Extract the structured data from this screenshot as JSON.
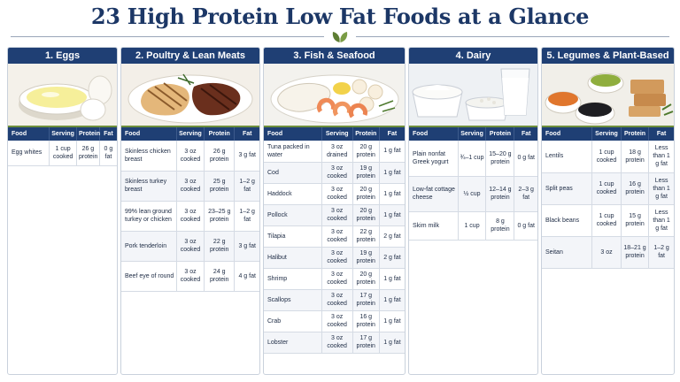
{
  "page_title": "23 High Protein Low Fat Foods at a Glance",
  "table_headers": {
    "food": "Food",
    "serving": "Serving",
    "protein": "Protein",
    "fat": "Fat"
  },
  "panels": [
    {
      "title": "1. Eggs",
      "image": "egg-whites-bowl",
      "rows": [
        {
          "food": "Egg whites",
          "serving": "1 cup cooked",
          "protein": "26 g protein",
          "fat": "0 g fat"
        }
      ]
    },
    {
      "title": "2. Poultry & Lean Meats",
      "image": "grilled-chicken-and-beef",
      "rows": [
        {
          "food": "Skinless chicken breast",
          "serving": "3 oz cooked",
          "protein": "26 g protein",
          "fat": "3 g fat"
        },
        {
          "food": "Skinless turkey breast",
          "serving": "3 oz cooked",
          "protein": "25 g protein",
          "fat": "1–2 g fat"
        },
        {
          "food": "99% lean ground turkey or chicken",
          "serving": "3 oz cooked",
          "protein": "23–25 g protein",
          "fat": "1–2 g fat"
        },
        {
          "food": "Pork tenderloin",
          "serving": "3 oz cooked",
          "protein": "22 g protein",
          "fat": "3 g fat"
        },
        {
          "food": "Beef eye of round",
          "serving": "3 oz cooked",
          "protein": "24 g protein",
          "fat": "4 g fat"
        }
      ]
    },
    {
      "title": "3. Fish & Seafood",
      "image": "fish-shrimp-scallops",
      "rows": [
        {
          "food": "Tuna packed in water",
          "serving": "3 oz drained",
          "protein": "20 g protein",
          "fat": "1 g fat"
        },
        {
          "food": "Cod",
          "serving": "3 oz cooked",
          "protein": "19 g protein",
          "fat": "1 g fat"
        },
        {
          "food": "Haddock",
          "serving": "3 oz cooked",
          "protein": "20 g protein",
          "fat": "1 g fat"
        },
        {
          "food": "Pollock",
          "serving": "3 oz cooked",
          "protein": "20 g protein",
          "fat": "1 g fat"
        },
        {
          "food": "Tilapia",
          "serving": "3 oz cooked",
          "protein": "22 g protein",
          "fat": "2 g fat"
        },
        {
          "food": "Halibut",
          "serving": "3 oz cooked",
          "protein": "19 g protein",
          "fat": "2 g fat"
        },
        {
          "food": "Shrimp",
          "serving": "3 oz cooked",
          "protein": "20 g protein",
          "fat": "1 g fat"
        },
        {
          "food": "Scallops",
          "serving": "3 oz cooked",
          "protein": "17 g protein",
          "fat": "1 g fat"
        },
        {
          "food": "Crab",
          "serving": "3 oz cooked",
          "protein": "16 g protein",
          "fat": "1 g fat"
        },
        {
          "food": "Lobster",
          "serving": "3 oz cooked",
          "protein": "17 g protein",
          "fat": "1 g fat"
        }
      ]
    },
    {
      "title": "4. Dairy",
      "image": "yogurt-cottage-cheese-milk",
      "rows": [
        {
          "food": "Plain nonfat Greek yogurt",
          "serving": "¾–1 cup",
          "protein": "15–20 g protein",
          "fat": "0 g fat"
        },
        {
          "food": "Low-fat cottage cheese",
          "serving": "½ cup",
          "protein": "12–14 g protein",
          "fat": "2–3 g fat"
        },
        {
          "food": "Skim milk",
          "serving": "1 cup",
          "protein": "8 g protein",
          "fat": "0 g fat"
        }
      ]
    },
    {
      "title": "5. Legumes & Plant-Based",
      "image": "lentils-peas-beans-seitan",
      "rows": [
        {
          "food": "Lentils",
          "serving": "1 cup cooked",
          "protein": "18 g protein",
          "fat": "Less than 1 g fat"
        },
        {
          "food": "Split peas",
          "serving": "1 cup cooked",
          "protein": "16 g protein",
          "fat": "Less than 1 g fat"
        },
        {
          "food": "Black beans",
          "serving": "1 cup cooked",
          "protein": "15 g protein",
          "fat": "Less than 1 g fat"
        },
        {
          "food": "Seitan",
          "serving": "3 oz",
          "protein": "18–21 g protein",
          "fat": "1–2 g fat"
        }
      ]
    }
  ],
  "colors": {
    "header_navy": "#1f3f74",
    "title_navy": "#1c3766",
    "accent_green": "#6e8f3c"
  }
}
